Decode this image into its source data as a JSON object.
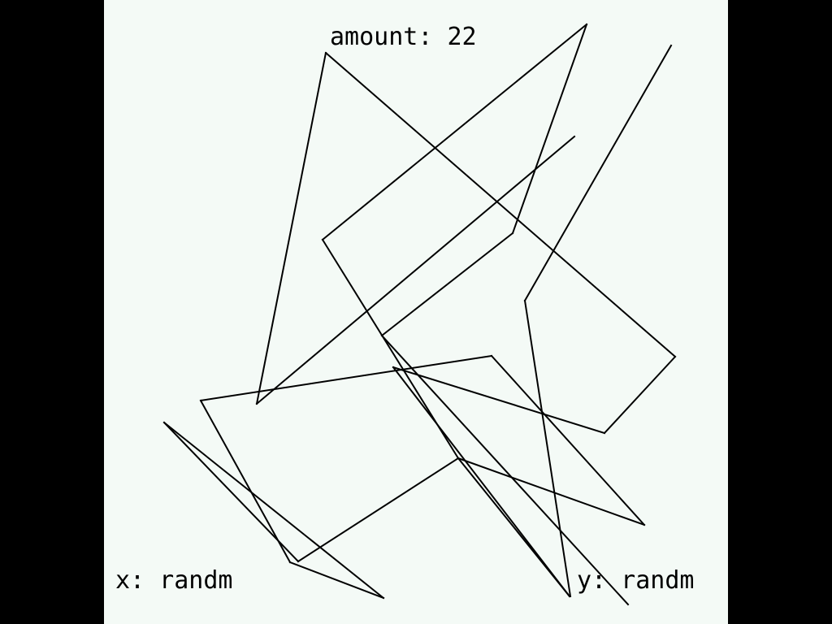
{
  "hud": {
    "amount_text": "amount: 22",
    "x_text": "x: randm",
    "y_text": "y: randm"
  },
  "colors": {
    "letterbox": "#000000",
    "canvas_background": "#f4faf6",
    "line_color": "#000000"
  },
  "lines": {
    "count": 22
  }
}
